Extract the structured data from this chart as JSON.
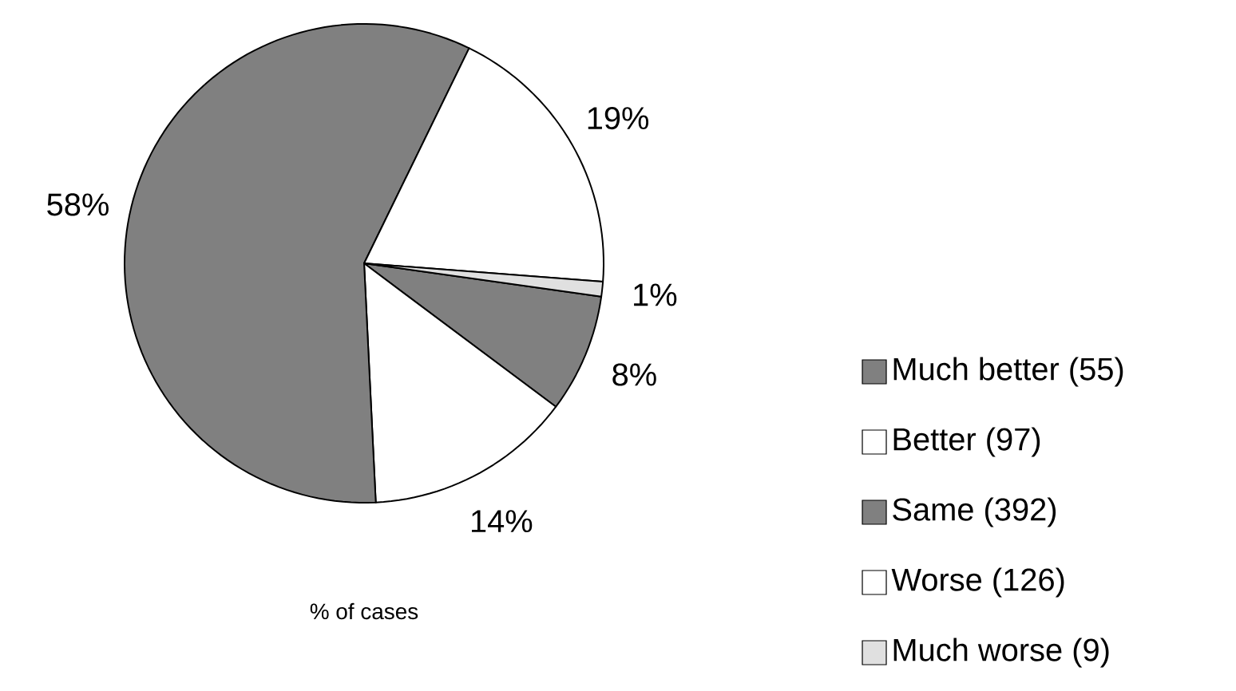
{
  "chart_data": {
    "type": "pie",
    "xlabel": "% of cases",
    "categories": [
      "Much better (55)",
      "Better (97)",
      "Same (392)",
      "Worse (126)",
      "Much worse (9)"
    ],
    "values": [
      8,
      14,
      58,
      19,
      1
    ],
    "value_labels": [
      "8%",
      "14%",
      "58%",
      "19%",
      "1%"
    ],
    "colors": [
      "#808080",
      "#ffffff",
      "#808080",
      "#ffffff",
      "#e0e0e0"
    ],
    "legend": "right"
  }
}
